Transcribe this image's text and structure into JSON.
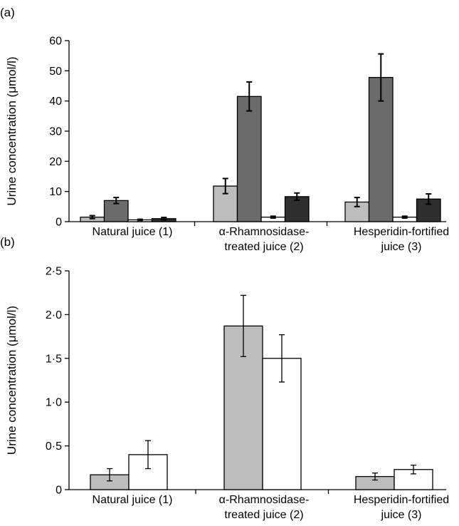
{
  "chart_data": [
    {
      "panel_label": "(a)",
      "type": "bar",
      "ylabel": "Urine concentration (μmol/l)",
      "ylim": [
        0,
        60
      ],
      "yticks": [
        "0",
        "10",
        "20",
        "30",
        "40",
        "50",
        "60"
      ],
      "ytick_values": [
        0,
        10,
        20,
        30,
        40,
        50,
        60
      ],
      "categories": [
        [
          "Natural juice (1)"
        ],
        [
          "α-Rhamnosidase-",
          "treated juice (2)"
        ],
        [
          "Hesperidin-fortified",
          "juice (3)"
        ]
      ],
      "series": [
        {
          "fill": "#bdbdbd",
          "values": [
            1.5,
            11.8,
            6.5
          ],
          "errors": [
            0.5,
            2.5,
            1.5
          ]
        },
        {
          "fill": "#6b6b6b",
          "values": [
            7.0,
            41.5,
            47.8
          ],
          "errors": [
            1.0,
            4.8,
            7.8
          ]
        },
        {
          "fill": "#ffffff",
          "values": [
            0.6,
            1.5,
            1.5
          ],
          "errors": [
            0.2,
            0.3,
            0.3
          ]
        },
        {
          "fill": "#2e2e2e",
          "values": [
            1.0,
            8.3,
            7.5
          ],
          "errors": [
            0.4,
            1.2,
            1.7
          ]
        }
      ],
      "grid": false
    },
    {
      "panel_label": "(b)",
      "type": "bar",
      "ylabel": "Urine concentration (μmol/l)",
      "ylim": [
        0,
        2.5
      ],
      "yticks": [
        "0",
        "0·5",
        "1·0",
        "1·5",
        "2·0",
        "2·5"
      ],
      "ytick_values": [
        0,
        0.5,
        1.0,
        1.5,
        2.0,
        2.5
      ],
      "categories": [
        [
          "Natural juice (1)"
        ],
        [
          "α-Rhamnosidase-",
          "treated juice (2)"
        ],
        [
          "Hesperidin-fortified",
          "juice (3)"
        ]
      ],
      "series": [
        {
          "fill": "#bdbdbd",
          "values": [
            0.17,
            1.87,
            0.15
          ],
          "errors": [
            0.07,
            0.35,
            0.04
          ]
        },
        {
          "fill": "#ffffff",
          "values": [
            0.4,
            1.5,
            0.23
          ],
          "errors": [
            0.16,
            0.27,
            0.05
          ]
        }
      ],
      "grid": false
    }
  ]
}
